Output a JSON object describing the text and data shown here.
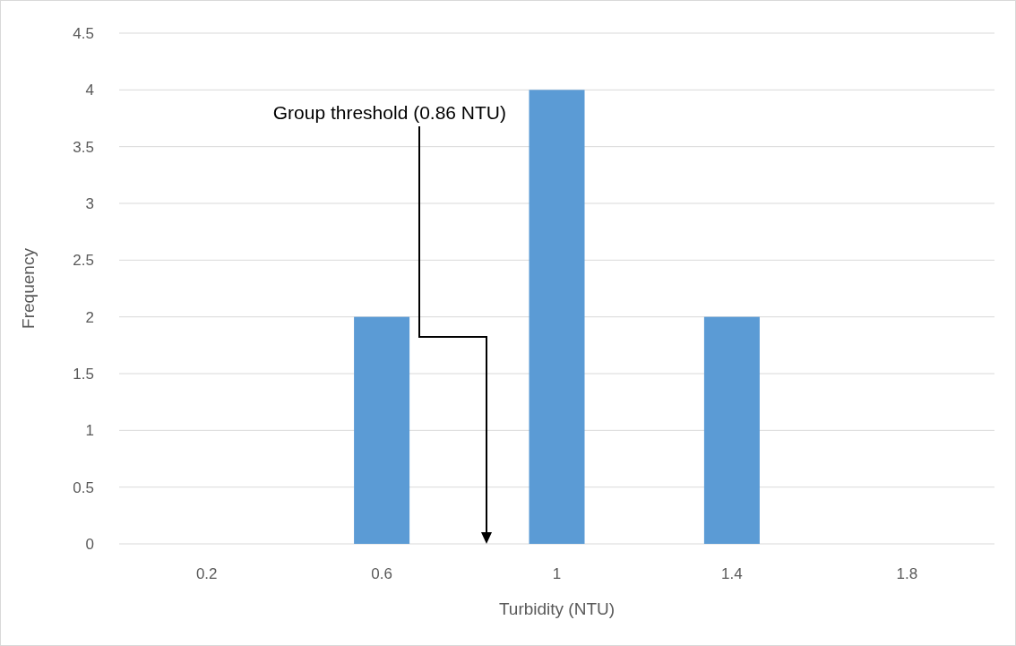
{
  "chart_data": {
    "type": "bar",
    "xlabel": "Turbidity (NTU)",
    "ylabel": "Frequency",
    "x": [
      0.2,
      0.6,
      1,
      1.4,
      1.8
    ],
    "values": [
      0,
      2,
      4,
      2,
      0
    ],
    "color": "#5b9bd5",
    "xlim": [
      0,
      2
    ],
    "xticks": [
      0.2,
      0.6,
      1,
      1.4,
      1.8
    ],
    "ylim": [
      0,
      4.5
    ],
    "yticks": [
      0,
      0.5,
      1,
      1.5,
      2,
      2.5,
      3,
      3.5,
      4,
      4.5
    ],
    "grid": "y",
    "annotations": [
      "Group threshold (0.86 NTU)"
    ]
  }
}
